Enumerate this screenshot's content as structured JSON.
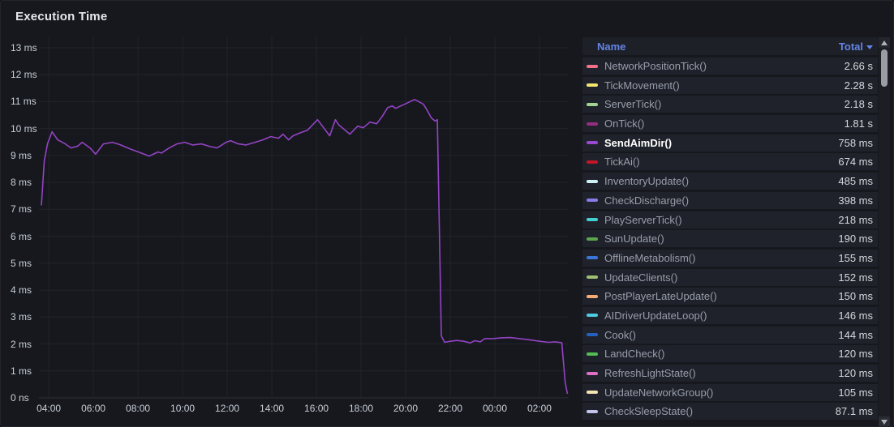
{
  "panel": {
    "title": "Execution Time"
  },
  "legend": {
    "columns": {
      "name": "Name",
      "total": "Total"
    },
    "sort": {
      "column": "Total",
      "direction": "desc",
      "icon": "caret-down"
    },
    "header_color": "#6484e6",
    "rows": [
      {
        "name": "NetworkPositionTick()",
        "total": "2.66 s",
        "color": "#f2708a",
        "highlighted": false
      },
      {
        "name": "TickMovement()",
        "total": "2.28 s",
        "color": "#efe76e",
        "highlighted": false
      },
      {
        "name": "ServerTick()",
        "total": "2.18 s",
        "color": "#a3d394",
        "highlighted": false
      },
      {
        "name": "OnTick()",
        "total": "1.81 s",
        "color": "#962d82",
        "highlighted": false
      },
      {
        "name": "SendAimDir()",
        "total": "758 ms",
        "color": "#9a48cf",
        "highlighted": true
      },
      {
        "name": "TickAi()",
        "total": "674 ms",
        "color": "#c4162a",
        "highlighted": false
      },
      {
        "name": "InventoryUpdate()",
        "total": "485 ms",
        "color": "#cdf0f6",
        "highlighted": false
      },
      {
        "name": "CheckDischarge()",
        "total": "398 ms",
        "color": "#8a7be8",
        "highlighted": false
      },
      {
        "name": "PlayServerTick()",
        "total": "218 ms",
        "color": "#43cfcf",
        "highlighted": false
      },
      {
        "name": "SunUpdate()",
        "total": "190 ms",
        "color": "#5ba64f",
        "highlighted": false
      },
      {
        "name": "OfflineMetabolism()",
        "total": "155 ms",
        "color": "#3a76d8",
        "highlighted": false
      },
      {
        "name": "UpdateClients()",
        "total": "152 ms",
        "color": "#a0bf72",
        "highlighted": false
      },
      {
        "name": "PostPlayerLateUpdate()",
        "total": "150 ms",
        "color": "#f7ab77",
        "highlighted": false
      },
      {
        "name": "AIDriverUpdateLoop()",
        "total": "146 ms",
        "color": "#4fcbe0",
        "highlighted": false
      },
      {
        "name": "Cook()",
        "total": "144 ms",
        "color": "#2460bd",
        "highlighted": false
      },
      {
        "name": "LandCheck()",
        "total": "120 ms",
        "color": "#51bd52",
        "highlighted": false
      },
      {
        "name": "RefreshLightState()",
        "total": "120 ms",
        "color": "#df6fc8",
        "highlighted": false
      },
      {
        "name": "UpdateNetworkGroup()",
        "total": "105 ms",
        "color": "#f4e3b4",
        "highlighted": false
      },
      {
        "name": "CheckSleepState()",
        "total": "87.1 ms",
        "color": "#c6c2ee",
        "highlighted": false
      }
    ]
  },
  "scrollbar": {
    "up_icon": "triangle-up",
    "down_icon": "triangle-down"
  },
  "chart_data": {
    "type": "line",
    "title": "Execution Time",
    "grid": true,
    "legend_position": "right-table",
    "y_axis": {
      "range_ms": [
        0,
        13.42
      ],
      "ticks": [
        {
          "label": "13 ms",
          "value": 13
        },
        {
          "label": "12 ms",
          "value": 12
        },
        {
          "label": "11 ms",
          "value": 11
        },
        {
          "label": "10 ms",
          "value": 10
        },
        {
          "label": "9 ms",
          "value": 9
        },
        {
          "label": "8 ms",
          "value": 8
        },
        {
          "label": "7 ms",
          "value": 7
        },
        {
          "label": "6 ms",
          "value": 6
        },
        {
          "label": "5 ms",
          "value": 5
        },
        {
          "label": "4 ms",
          "value": 4
        },
        {
          "label": "3 ms",
          "value": 3
        },
        {
          "label": "2 ms",
          "value": 2
        },
        {
          "label": "1 ms",
          "value": 1
        },
        {
          "label": "0 ns",
          "value": 0
        }
      ]
    },
    "x_axis": {
      "range_hours": [
        3.56,
        27.31
      ],
      "ticks": [
        {
          "label": "04:00",
          "hour": 4
        },
        {
          "label": "06:00",
          "hour": 6
        },
        {
          "label": "08:00",
          "hour": 8
        },
        {
          "label": "10:00",
          "hour": 10
        },
        {
          "label": "12:00",
          "hour": 12
        },
        {
          "label": "14:00",
          "hour": 14
        },
        {
          "label": "16:00",
          "hour": 16
        },
        {
          "label": "18:00",
          "hour": 18
        },
        {
          "label": "20:00",
          "hour": 20
        },
        {
          "label": "22:00",
          "hour": 22
        },
        {
          "label": "00:00",
          "hour": 24
        },
        {
          "label": "02:00",
          "hour": 26
        }
      ]
    },
    "series": [
      {
        "name": "SendAimDir()",
        "color": "#9443c4",
        "unit": "ms",
        "points_hours_ms": [
          [
            3.67,
            7.15
          ],
          [
            3.8,
            8.8
          ],
          [
            3.95,
            9.45
          ],
          [
            4.15,
            9.88
          ],
          [
            4.4,
            9.58
          ],
          [
            4.7,
            9.45
          ],
          [
            5.0,
            9.28
          ],
          [
            5.3,
            9.35
          ],
          [
            5.5,
            9.49
          ],
          [
            5.85,
            9.28
          ],
          [
            6.1,
            9.05
          ],
          [
            6.45,
            9.43
          ],
          [
            6.85,
            9.49
          ],
          [
            7.2,
            9.4
          ],
          [
            7.65,
            9.24
          ],
          [
            8.05,
            9.12
          ],
          [
            8.5,
            8.98
          ],
          [
            8.9,
            9.13
          ],
          [
            9.05,
            9.09
          ],
          [
            9.4,
            9.28
          ],
          [
            9.75,
            9.43
          ],
          [
            10.1,
            9.49
          ],
          [
            10.45,
            9.39
          ],
          [
            10.85,
            9.43
          ],
          [
            11.2,
            9.34
          ],
          [
            11.55,
            9.28
          ],
          [
            11.95,
            9.49
          ],
          [
            12.15,
            9.55
          ],
          [
            12.5,
            9.43
          ],
          [
            12.85,
            9.39
          ],
          [
            13.25,
            9.49
          ],
          [
            13.6,
            9.58
          ],
          [
            13.95,
            9.7
          ],
          [
            14.3,
            9.64
          ],
          [
            14.5,
            9.79
          ],
          [
            14.75,
            9.58
          ],
          [
            14.95,
            9.73
          ],
          [
            15.3,
            9.85
          ],
          [
            15.6,
            9.94
          ],
          [
            16.05,
            10.33
          ],
          [
            16.35,
            10.0
          ],
          [
            16.6,
            9.73
          ],
          [
            16.85,
            10.33
          ],
          [
            17.0,
            10.14
          ],
          [
            17.2,
            10.0
          ],
          [
            17.5,
            9.79
          ],
          [
            17.85,
            10.09
          ],
          [
            18.1,
            10.03
          ],
          [
            18.4,
            10.24
          ],
          [
            18.7,
            10.18
          ],
          [
            18.95,
            10.45
          ],
          [
            19.2,
            10.78
          ],
          [
            19.4,
            10.84
          ],
          [
            19.55,
            10.75
          ],
          [
            19.95,
            10.9
          ],
          [
            20.4,
            11.08
          ],
          [
            20.55,
            11.02
          ],
          [
            20.8,
            10.9
          ],
          [
            21.0,
            10.63
          ],
          [
            21.15,
            10.4
          ],
          [
            21.32,
            10.28
          ],
          [
            21.42,
            10.33
          ],
          [
            21.6,
            2.3
          ],
          [
            21.75,
            2.06
          ],
          [
            22.0,
            2.1
          ],
          [
            22.3,
            2.13
          ],
          [
            22.6,
            2.1
          ],
          [
            22.9,
            2.04
          ],
          [
            23.1,
            2.12
          ],
          [
            23.35,
            2.08
          ],
          [
            23.55,
            2.2
          ],
          [
            23.9,
            2.2
          ],
          [
            24.3,
            2.23
          ],
          [
            24.7,
            2.24
          ],
          [
            25.1,
            2.2
          ],
          [
            25.5,
            2.16
          ],
          [
            26.0,
            2.1
          ],
          [
            26.4,
            2.06
          ],
          [
            26.7,
            2.08
          ],
          [
            27.0,
            2.05
          ],
          [
            27.15,
            0.6
          ],
          [
            27.25,
            0.15
          ]
        ]
      }
    ]
  }
}
